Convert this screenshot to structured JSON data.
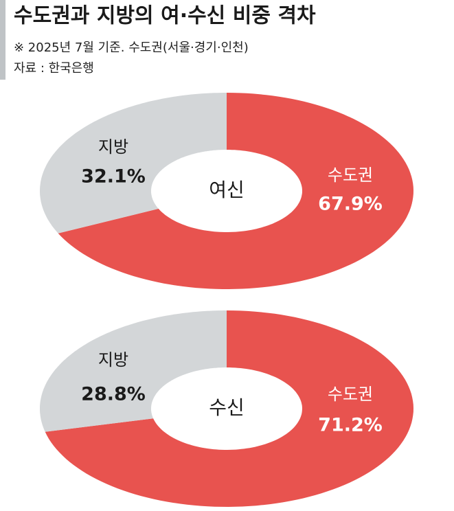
{
  "header": {
    "title": "수도권과 지방의 여·수신 비중 격차",
    "note": "※ 2025년 7월 기준. 수도권(서울·경기·인천)",
    "source": "자료 : 한국은행"
  },
  "chart_data": [
    {
      "type": "pie",
      "center_label": "여신",
      "categories": [
        "수도권",
        "지방"
      ],
      "values": [
        67.9,
        32.1
      ],
      "value_labels": [
        "67.9%",
        "32.1%"
      ],
      "colors": [
        "#e8534f",
        "#d3d6d8"
      ]
    },
    {
      "type": "pie",
      "center_label": "수신",
      "categories": [
        "수도권",
        "지방"
      ],
      "values": [
        71.2,
        28.8
      ],
      "value_labels": [
        "71.2%",
        "28.8%"
      ],
      "colors": [
        "#e8534f",
        "#d3d6d8"
      ]
    }
  ]
}
